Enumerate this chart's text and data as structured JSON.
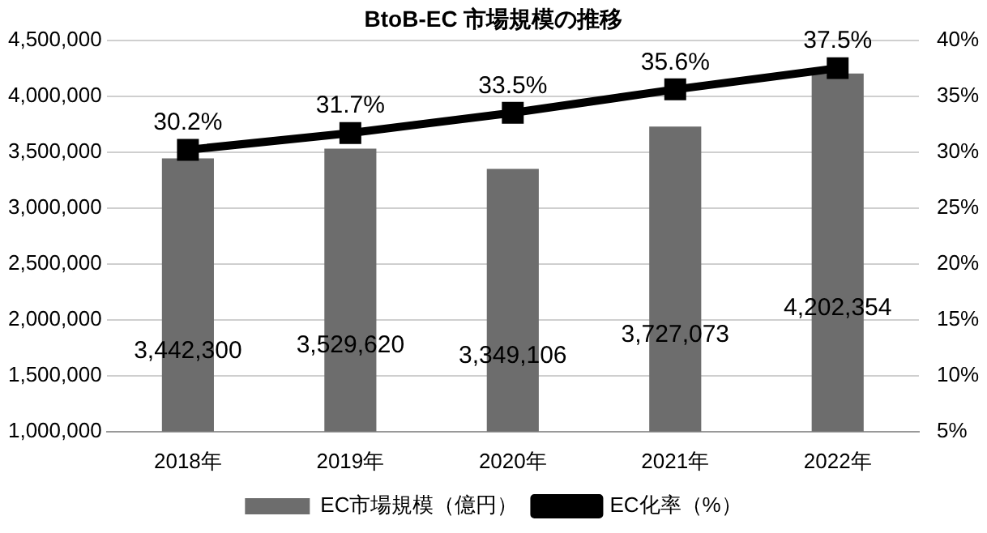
{
  "chart_data": {
    "type": "bar",
    "title": "BtoB-EC 市場規模の推移",
    "categories": [
      "2018年",
      "2019年",
      "2020年",
      "2021年",
      "2022年"
    ],
    "series": [
      {
        "name": "EC市場規模（億円）",
        "color": "#6d6d6d",
        "values": [
          3442300,
          3529620,
          3349106,
          3727073,
          4202354
        ],
        "value_labels": [
          "3,442,300",
          "3,529,620",
          "3,349,106",
          "3,727,073",
          "4,202,354"
        ]
      },
      {
        "name": "EC化率（%）",
        "type": "line",
        "axis": "y2",
        "color": "#000000",
        "marker": "square",
        "values": [
          30.2,
          31.7,
          33.5,
          35.6,
          37.5
        ],
        "value_labels": [
          "30.2%",
          "31.7%",
          "33.5%",
          "35.6%",
          "37.5%"
        ]
      }
    ],
    "ylim": [
      1000000,
      4500000
    ],
    "yticks": [
      {
        "value": 1000000,
        "label": "1,000,000"
      },
      {
        "value": 1500000,
        "label": "1,500,000"
      },
      {
        "value": 2000000,
        "label": "2,000,000"
      },
      {
        "value": 2500000,
        "label": "2,500,000"
      },
      {
        "value": 3000000,
        "label": "3,000,000"
      },
      {
        "value": 3500000,
        "label": "3,500,000"
      },
      {
        "value": 4000000,
        "label": "4,000,000"
      },
      {
        "value": 4500000,
        "label": "4,500,000"
      }
    ],
    "y2lim": [
      5,
      40
    ],
    "y2ticks": [
      {
        "value": 5,
        "label": "5%"
      },
      {
        "value": 10,
        "label": "10%"
      },
      {
        "value": 15,
        "label": "15%"
      },
      {
        "value": 20,
        "label": "20%"
      },
      {
        "value": 25,
        "label": "25%"
      },
      {
        "value": 30,
        "label": "30%"
      },
      {
        "value": 35,
        "label": "35%"
      },
      {
        "value": 40,
        "label": "40%"
      }
    ],
    "grid": "y",
    "legend": "bottom"
  }
}
